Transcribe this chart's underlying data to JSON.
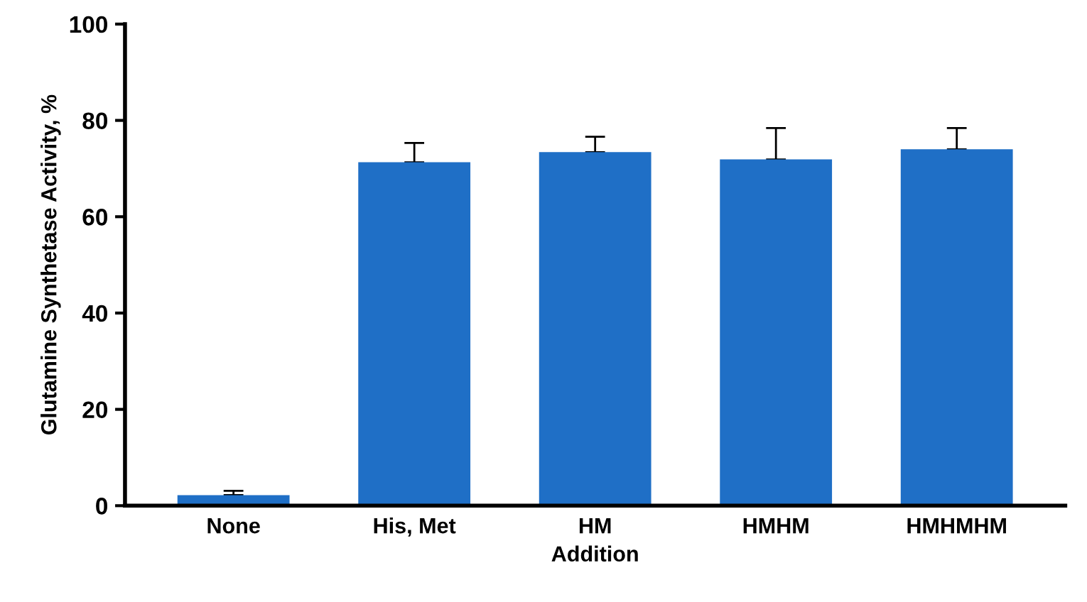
{
  "chart_data": {
    "type": "bar",
    "xlabel": "Addition",
    "ylabel": "Glutamine Synthetase Activity, %",
    "categories": [
      "None",
      "His, Met",
      "HM",
      "HMHM",
      "HMHMHM"
    ],
    "values": [
      2.2,
      71.3,
      73.4,
      71.9,
      74.0
    ],
    "errors": [
      [
        2.2,
        3.1
      ],
      [
        71.3,
        75.3
      ],
      [
        73.4,
        76.6
      ],
      [
        71.9,
        78.4
      ],
      [
        74.0,
        78.4
      ]
    ],
    "color": "#1f6fc6",
    "ylim": [
      0,
      100
    ],
    "yticks": [
      0,
      20,
      40,
      60,
      80,
      100
    ],
    "grid": false,
    "legend": false
  }
}
